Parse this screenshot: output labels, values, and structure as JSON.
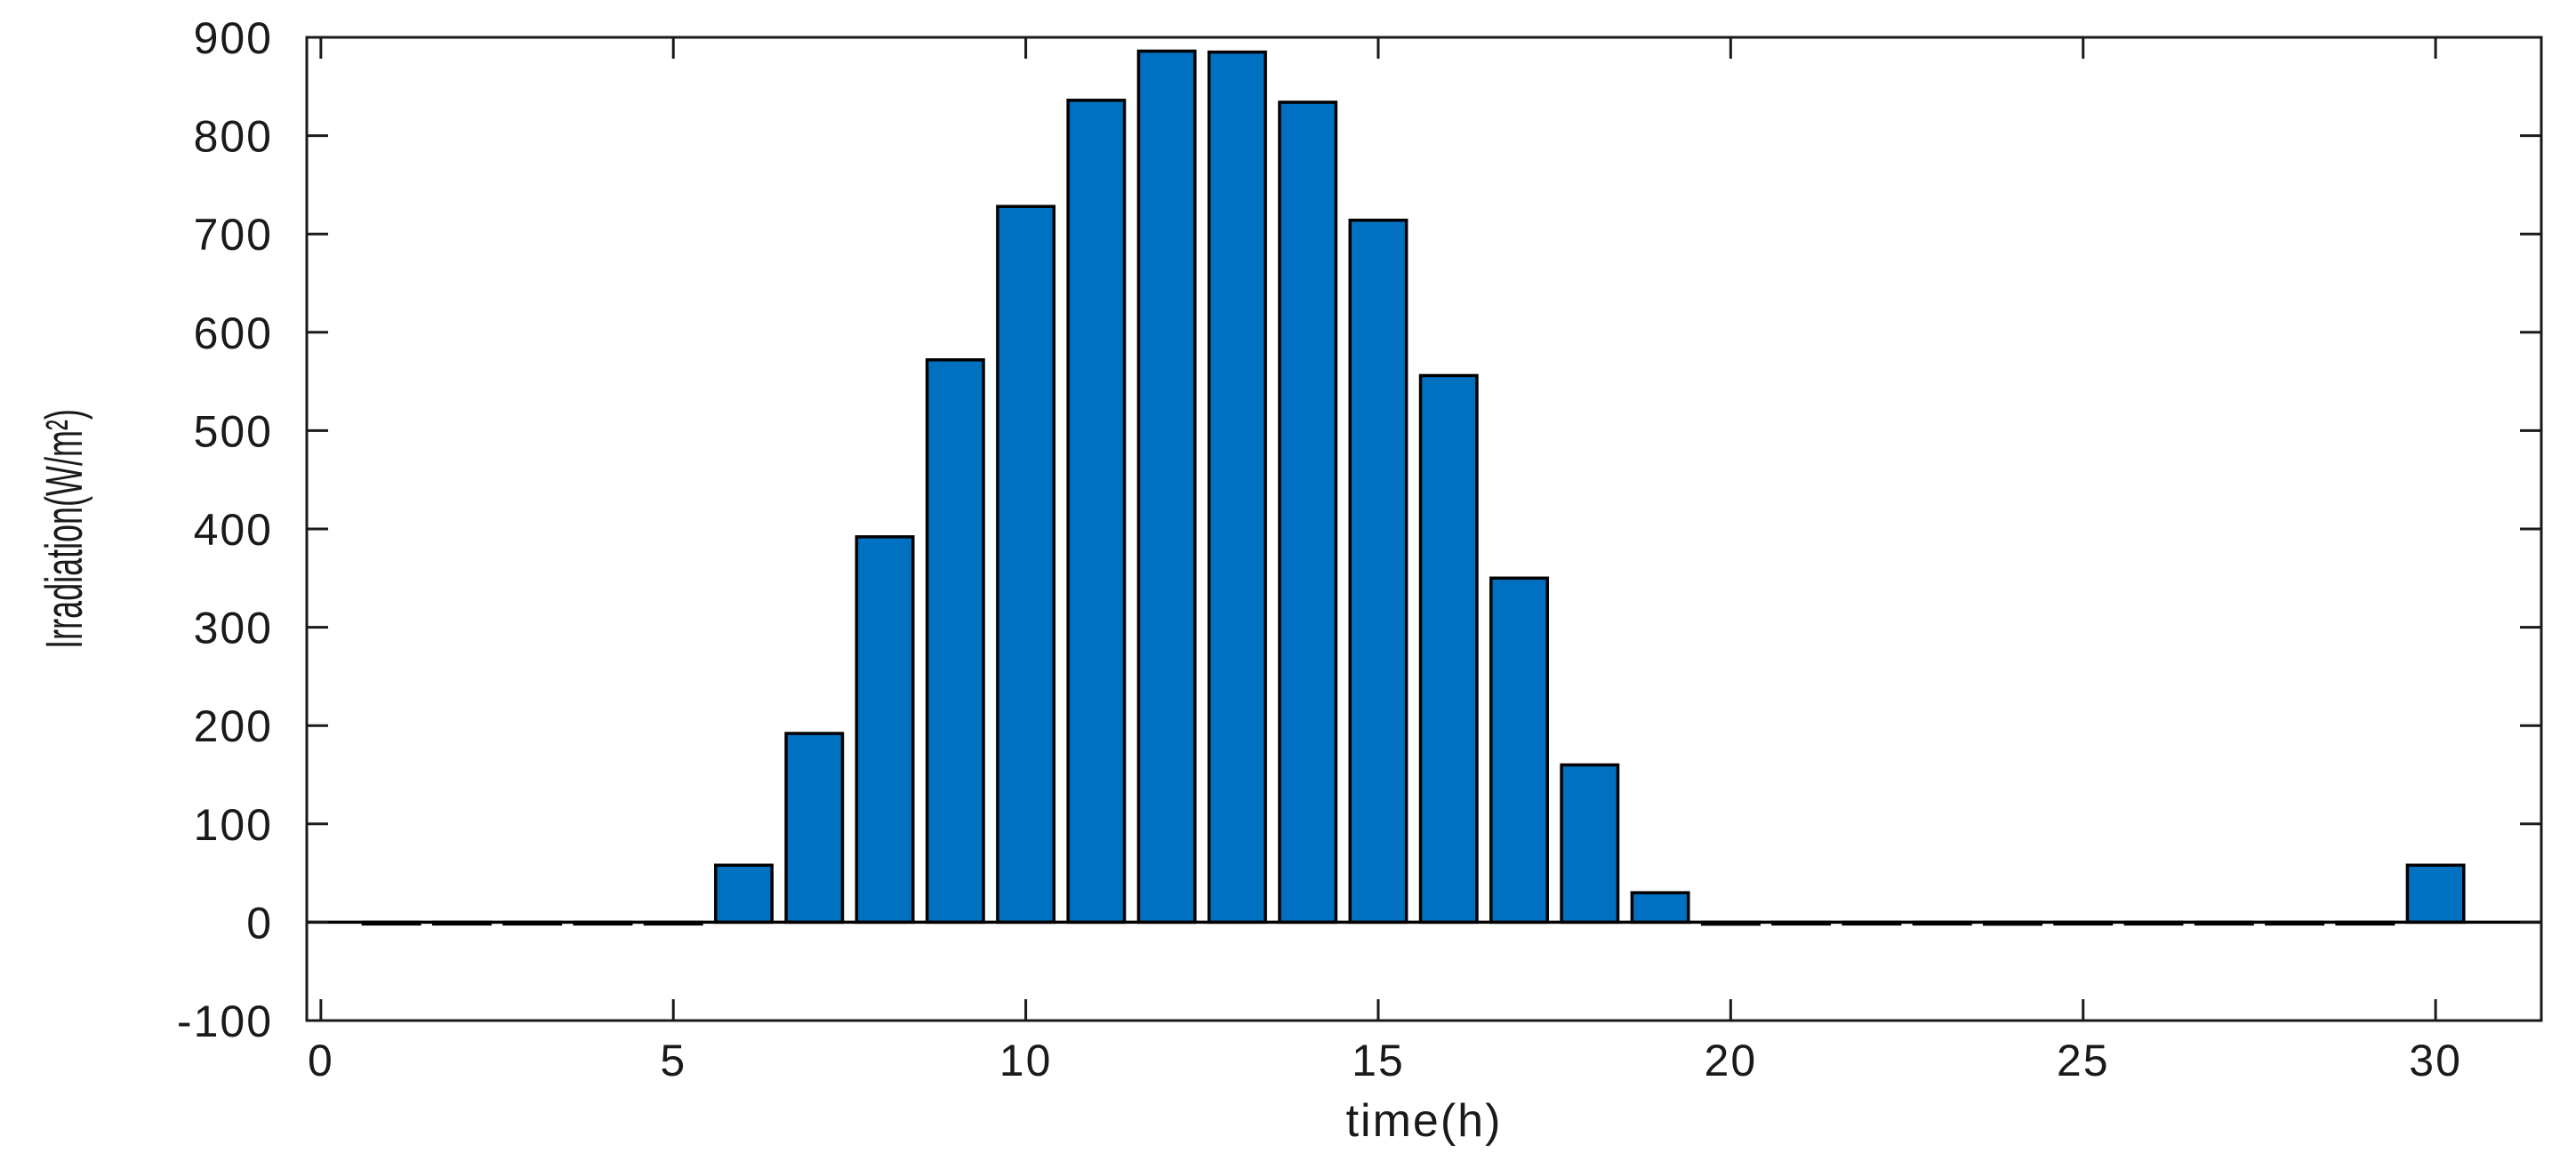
{
  "chart_data": {
    "type": "bar",
    "title": "",
    "xlabel": "time(h)",
    "ylabel": "Irradiation(W/m²)",
    "xlim": [
      -0.2,
      31.5
    ],
    "ylim": [
      -100,
      900
    ],
    "x_ticks": [
      0,
      5,
      10,
      15,
      20,
      25,
      30
    ],
    "y_ticks": [
      -100,
      0,
      100,
      200,
      300,
      400,
      500,
      600,
      700,
      800,
      900
    ],
    "x_tick_labels": [
      "0",
      "5",
      "10",
      "15",
      "20",
      "25",
      "30"
    ],
    "y_tick_labels": [
      "-100",
      "0",
      "100",
      "200",
      "300",
      "400",
      "500",
      "600",
      "700",
      "800",
      "900"
    ],
    "x": [
      1,
      2,
      3,
      4,
      5,
      6,
      7,
      8,
      9,
      10,
      11,
      12,
      13,
      14,
      15,
      16,
      17,
      18,
      19,
      20,
      21,
      22,
      23,
      24,
      25,
      26,
      27,
      28,
      29,
      30
    ],
    "values": [
      -1,
      -1,
      -1,
      -1,
      -0.5,
      58,
      192,
      392,
      572,
      728,
      836,
      886,
      885,
      834,
      714,
      556,
      350,
      160,
      30,
      -2,
      -1,
      -1,
      -1,
      -2,
      -1,
      -1,
      -1,
      -1,
      -0.5,
      58
    ],
    "bar_color": "#0070C0",
    "edge_color": "#000000",
    "grid": false,
    "legend": "none"
  }
}
